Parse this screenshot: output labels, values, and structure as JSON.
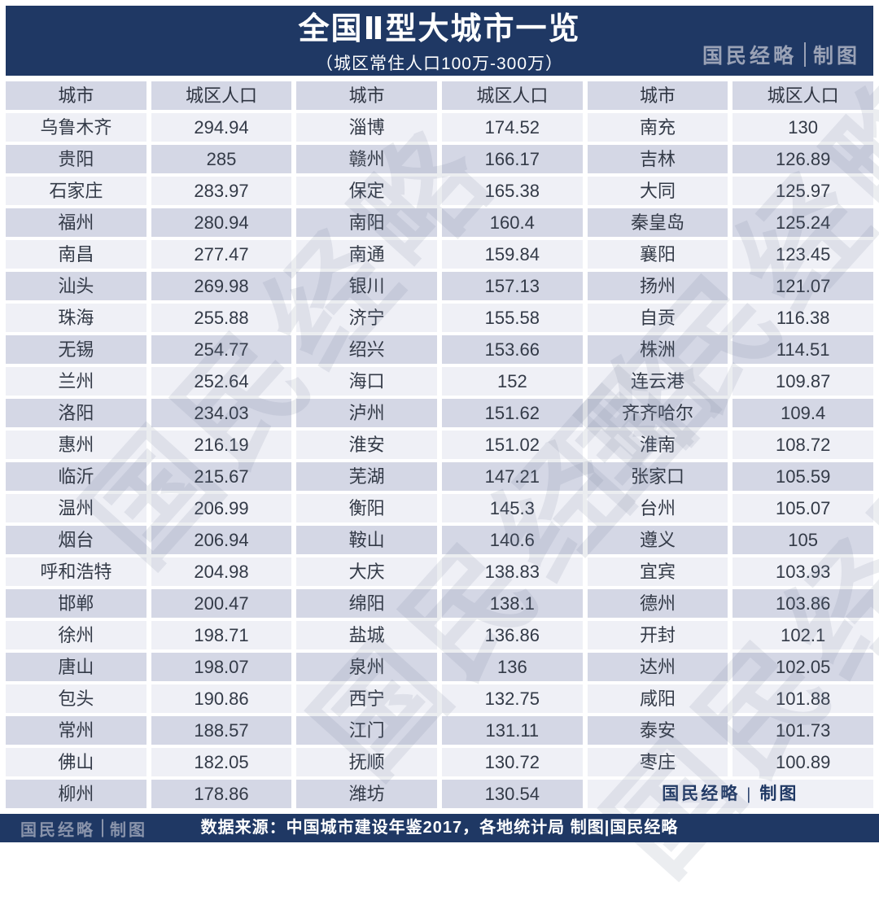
{
  "header": {
    "title": "全国Ⅱ型大城市一览",
    "subtitle": "（城区常住人口100万-300万）",
    "brand": "国民经略",
    "brand_suffix": "制图"
  },
  "table": {
    "column_headers": [
      "城市",
      "城区人口",
      "城市",
      "城区人口",
      "城市",
      "城区人口"
    ],
    "branding_cell": "国民经略 | 制图"
  },
  "watermark": {
    "text": "国民经略"
  },
  "footer": {
    "brand": "国民经略",
    "brand_suffix": "制图",
    "source": "数据来源：中国城市建设年鉴2017，各地统计局  制图|国民经略"
  },
  "colors": {
    "banner_navy": "#1f3864",
    "row_light": "#eff0f6",
    "row_dark": "#d4d7e5",
    "text_dark": "#333a47",
    "brand_gray": "#9aa2b6",
    "footer_text": "#ffffff"
  },
  "chart_data": {
    "type": "table",
    "title": "全国Ⅱ型大城市一览",
    "subtitle": "（城区常住人口100万-300万）",
    "columns": [
      "城市",
      "城区人口"
    ],
    "rows": [
      [
        "乌鲁木齐",
        294.94
      ],
      [
        "贵阳",
        285
      ],
      [
        "石家庄",
        283.97
      ],
      [
        "福州",
        280.94
      ],
      [
        "南昌",
        277.47
      ],
      [
        "汕头",
        269.98
      ],
      [
        "珠海",
        255.88
      ],
      [
        "无锡",
        254.77
      ],
      [
        "兰州",
        252.64
      ],
      [
        "洛阳",
        234.03
      ],
      [
        "惠州",
        216.19
      ],
      [
        "临沂",
        215.67
      ],
      [
        "温州",
        206.99
      ],
      [
        "烟台",
        206.94
      ],
      [
        "呼和浩特",
        204.98
      ],
      [
        "邯郸",
        200.47
      ],
      [
        "徐州",
        198.71
      ],
      [
        "唐山",
        198.07
      ],
      [
        "包头",
        190.86
      ],
      [
        "常州",
        188.57
      ],
      [
        "佛山",
        182.05
      ],
      [
        "柳州",
        178.86
      ],
      [
        "淄博",
        174.52
      ],
      [
        "赣州",
        166.17
      ],
      [
        "保定",
        165.38
      ],
      [
        "南阳",
        160.4
      ],
      [
        "南通",
        159.84
      ],
      [
        "银川",
        157.13
      ],
      [
        "济宁",
        155.58
      ],
      [
        "绍兴",
        153.66
      ],
      [
        "海口",
        152
      ],
      [
        "泸州",
        151.62
      ],
      [
        "淮安",
        151.02
      ],
      [
        "芜湖",
        147.21
      ],
      [
        "衡阳",
        145.3
      ],
      [
        "鞍山",
        140.6
      ],
      [
        "大庆",
        138.83
      ],
      [
        "绵阳",
        138.1
      ],
      [
        "盐城",
        136.86
      ],
      [
        "泉州",
        136
      ],
      [
        "西宁",
        132.75
      ],
      [
        "江门",
        131.11
      ],
      [
        "抚顺",
        130.72
      ],
      [
        "潍坊",
        130.54
      ],
      [
        "南充",
        130
      ],
      [
        "吉林",
        126.89
      ],
      [
        "大同",
        125.97
      ],
      [
        "秦皇岛",
        125.24
      ],
      [
        "襄阳",
        123.45
      ],
      [
        "扬州",
        121.07
      ],
      [
        "自贡",
        116.38
      ],
      [
        "株洲",
        114.51
      ],
      [
        "连云港",
        109.87
      ],
      [
        "齐齐哈尔",
        109.4
      ],
      [
        "淮南",
        108.72
      ],
      [
        "张家口",
        105.59
      ],
      [
        "台州",
        105.07
      ],
      [
        "遵义",
        105
      ],
      [
        "宜宾",
        103.93
      ],
      [
        "德州",
        103.86
      ],
      [
        "开封",
        102.1
      ],
      [
        "达州",
        102.05
      ],
      [
        "咸阳",
        101.88
      ],
      [
        "泰安",
        101.73
      ],
      [
        "枣庄",
        100.89
      ]
    ]
  }
}
